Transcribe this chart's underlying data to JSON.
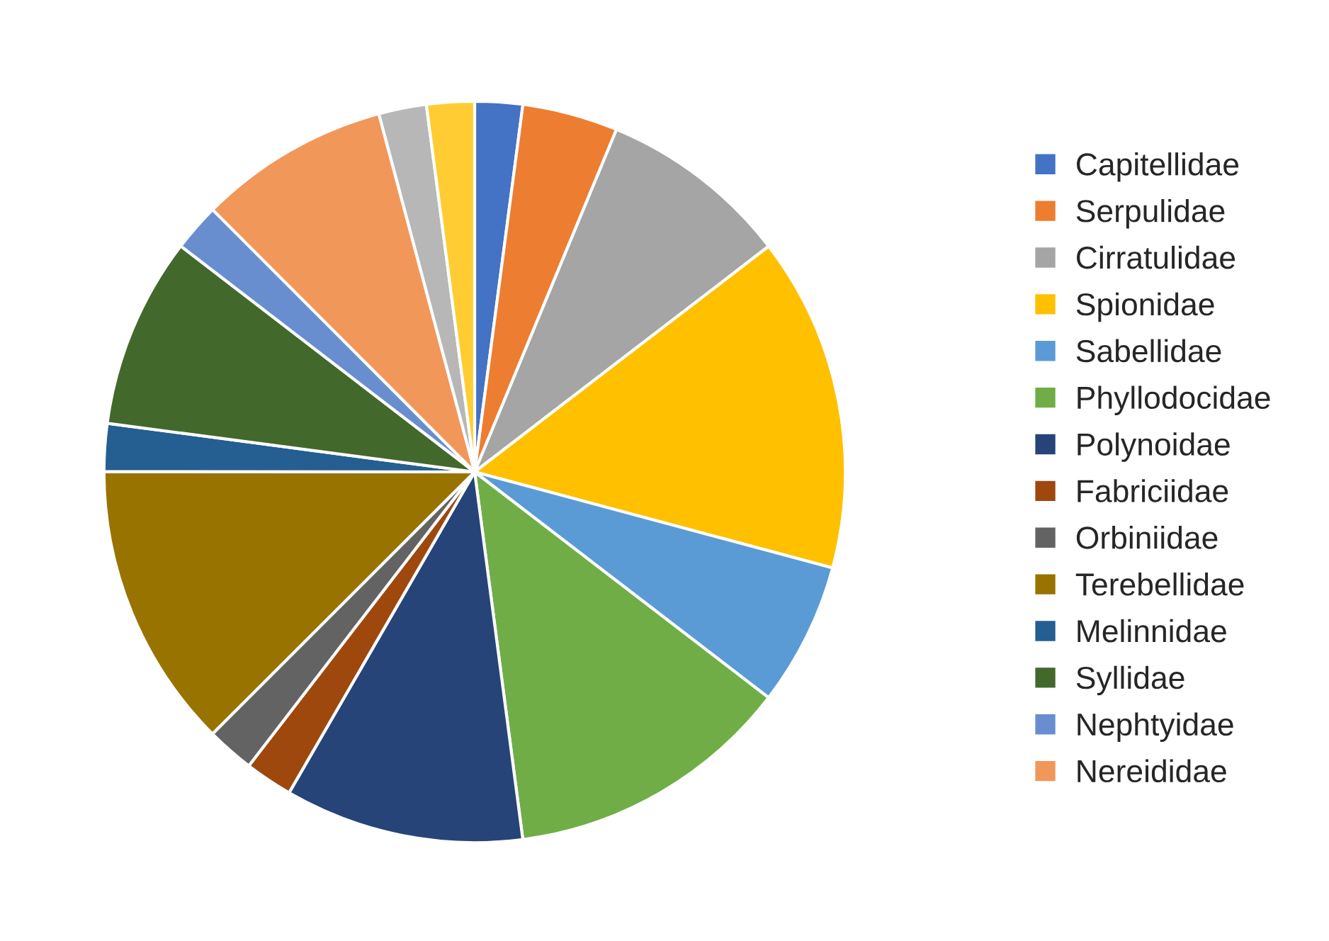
{
  "chart_data": {
    "type": "pie",
    "categories": [
      "Capitellidae",
      "Serpulidae",
      "Cirratulidae",
      "Spionidae",
      "Sabellidae",
      "Phyllodocidae",
      "Polynoidae",
      "Fabriciidae",
      "Orbiniidae",
      "Terebellidae",
      "Melinnidae",
      "Syllidae",
      "Nephtyidae",
      "Nereididae",
      null,
      null
    ],
    "values": [
      2.08,
      4.17,
      8.33,
      14.58,
      6.25,
      12.5,
      10.42,
      2.08,
      2.08,
      12.5,
      2.08,
      8.33,
      2.08,
      8.33,
      2.08,
      2.08
    ],
    "colors": [
      "#4472c4",
      "#ed7d31",
      "#a5a5a5",
      "#ffc000",
      "#5b9bd5",
      "#70ad47",
      "#264478",
      "#9e480e",
      "#636363",
      "#997300",
      "#255e91",
      "#43682b",
      "#698ed0",
      "#f1975a",
      "#b7b7b7",
      "#ffcd33"
    ],
    "legend": "right"
  }
}
